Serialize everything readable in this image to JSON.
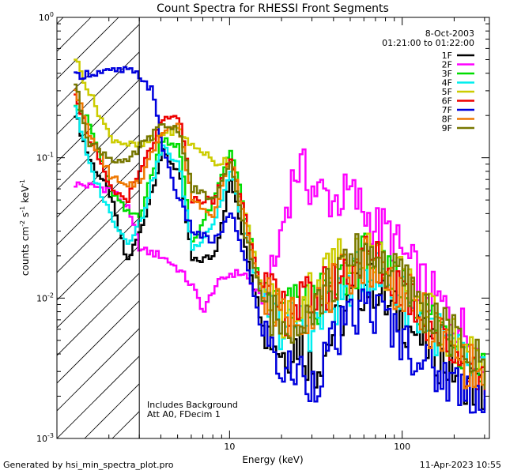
{
  "chart_data": {
    "type": "line",
    "title": "Count Spectra for RHESSI Front Segments",
    "xlabel": "Energy (keV)",
    "ylabel_parts": [
      "counts cm",
      "-2",
      " s",
      "-1",
      " keV",
      "-1"
    ],
    "xscale": "log",
    "yscale": "log",
    "xlim": [
      1.0,
      320.0
    ],
    "ylim": [
      0.001,
      1.0
    ],
    "x_ticks": [
      {
        "value": 10,
        "label": "10"
      },
      {
        "value": 100,
        "label": "100"
      }
    ],
    "y_ticks": [
      {
        "value": 1.0,
        "base": "10",
        "exp": "0"
      },
      {
        "value": 0.1,
        "base": "10",
        "exp": "-1"
      },
      {
        "value": 0.01,
        "base": "10",
        "exp": "-2"
      },
      {
        "value": 0.001,
        "base": "10",
        "exp": "-3"
      }
    ],
    "threshold_line_kev": 3.0,
    "hatched_region_kev": [
      1.0,
      3.0
    ],
    "date": "8-Oct-2003",
    "time_range": "01:21:00 to 01:22:00",
    "annotation_lines": [
      "Includes Background",
      "Att A0, FDecim 1"
    ],
    "series": [
      {
        "name": "1F",
        "color": "#000000",
        "values": [
          [
            1.25,
            0.21
          ],
          [
            1.5,
            0.1
          ],
          [
            2,
            0.055
          ],
          [
            2.5,
            0.018
          ],
          [
            3,
            0.03
          ],
          [
            4,
            0.11
          ],
          [
            5,
            0.08
          ],
          [
            6,
            0.018
          ],
          [
            8,
            0.02
          ],
          [
            10,
            0.07
          ],
          [
            12,
            0.025
          ],
          [
            15,
            0.007
          ],
          [
            20,
            0.004
          ],
          [
            25,
            0.005
          ],
          [
            30,
            0.003
          ],
          [
            40,
            0.006
          ],
          [
            50,
            0.0095
          ],
          [
            60,
            0.0125
          ],
          [
            70,
            0.012
          ],
          [
            80,
            0.0085
          ],
          [
            100,
            0.007
          ],
          [
            150,
            0.004
          ],
          [
            200,
            0.003
          ],
          [
            300,
            0.002
          ]
        ]
      },
      {
        "name": "2F",
        "color": "#ff00ff",
        "values": [
          [
            1.25,
            0.065
          ],
          [
            2,
            0.06
          ],
          [
            2.5,
            0.045
          ],
          [
            3,
            0.022
          ],
          [
            4,
            0.02
          ],
          [
            5,
            0.016
          ],
          [
            6,
            0.012
          ],
          [
            7,
            0.008
          ],
          [
            8,
            0.012
          ],
          [
            10,
            0.015
          ],
          [
            12,
            0.015
          ],
          [
            14,
            0.011
          ],
          [
            16,
            0.009
          ],
          [
            18,
            0.017
          ],
          [
            20,
            0.035
          ],
          [
            22,
            0.06
          ],
          [
            24,
            0.085
          ],
          [
            26,
            0.08
          ],
          [
            30,
            0.06
          ],
          [
            40,
            0.05
          ],
          [
            50,
            0.055
          ],
          [
            60,
            0.04
          ],
          [
            70,
            0.032
          ],
          [
            80,
            0.03
          ],
          [
            100,
            0.02
          ],
          [
            150,
            0.01
          ],
          [
            200,
            0.007
          ],
          [
            250,
            0.005
          ],
          [
            300,
            0.003
          ]
        ]
      },
      {
        "name": "3F",
        "color": "#00dd00",
        "values": [
          [
            1.25,
            0.25
          ],
          [
            1.5,
            0.18
          ],
          [
            2,
            0.06
          ],
          [
            2.5,
            0.04
          ],
          [
            3,
            0.04
          ],
          [
            4,
            0.14
          ],
          [
            5,
            0.12
          ],
          [
            6,
            0.025
          ],
          [
            8,
            0.05
          ],
          [
            10,
            0.12
          ],
          [
            12,
            0.04
          ],
          [
            15,
            0.012
          ],
          [
            20,
            0.008
          ],
          [
            25,
            0.009
          ],
          [
            30,
            0.009
          ],
          [
            40,
            0.012
          ],
          [
            50,
            0.016
          ],
          [
            60,
            0.02
          ],
          [
            70,
            0.018
          ],
          [
            80,
            0.014
          ],
          [
            100,
            0.012
          ],
          [
            150,
            0.007
          ],
          [
            200,
            0.005
          ],
          [
            300,
            0.003
          ]
        ]
      },
      {
        "name": "4F",
        "color": "#00eeee",
        "values": [
          [
            1.25,
            0.24
          ],
          [
            1.5,
            0.09
          ],
          [
            2,
            0.04
          ],
          [
            2.5,
            0.025
          ],
          [
            3,
            0.035
          ],
          [
            4,
            0.12
          ],
          [
            5,
            0.09
          ],
          [
            6,
            0.022
          ],
          [
            8,
            0.035
          ],
          [
            10,
            0.08
          ],
          [
            12,
            0.03
          ],
          [
            15,
            0.01
          ],
          [
            20,
            0.006
          ],
          [
            25,
            0.007
          ],
          [
            30,
            0.006
          ],
          [
            40,
            0.009
          ],
          [
            50,
            0.013
          ],
          [
            60,
            0.016
          ],
          [
            70,
            0.015
          ],
          [
            80,
            0.012
          ],
          [
            100,
            0.01
          ],
          [
            150,
            0.006
          ],
          [
            200,
            0.004
          ],
          [
            300,
            0.0025
          ]
        ]
      },
      {
        "name": "5F",
        "color": "#cccc00",
        "values": [
          [
            1.25,
            0.52
          ],
          [
            1.5,
            0.3
          ],
          [
            2,
            0.14
          ],
          [
            2.5,
            0.125
          ],
          [
            3,
            0.12
          ],
          [
            4,
            0.15
          ],
          [
            5,
            0.16
          ],
          [
            6,
            0.12
          ],
          [
            7,
            0.11
          ],
          [
            8,
            0.09
          ],
          [
            10,
            0.1
          ],
          [
            12,
            0.04
          ],
          [
            15,
            0.012
          ],
          [
            20,
            0.007
          ],
          [
            25,
            0.009
          ],
          [
            30,
            0.012
          ],
          [
            40,
            0.018
          ],
          [
            50,
            0.022
          ],
          [
            60,
            0.023
          ],
          [
            70,
            0.02
          ],
          [
            80,
            0.016
          ],
          [
            100,
            0.013
          ],
          [
            150,
            0.007
          ],
          [
            200,
            0.005
          ],
          [
            300,
            0.003
          ]
        ]
      },
      {
        "name": "6F",
        "color": "#ee0000",
        "values": [
          [
            1.25,
            0.3
          ],
          [
            1.5,
            0.14
          ],
          [
            2,
            0.06
          ],
          [
            2.5,
            0.05
          ],
          [
            3,
            0.08
          ],
          [
            4,
            0.18
          ],
          [
            5,
            0.2
          ],
          [
            6,
            0.05
          ],
          [
            8,
            0.05
          ],
          [
            10,
            0.1
          ],
          [
            12,
            0.04
          ],
          [
            15,
            0.012
          ],
          [
            20,
            0.008
          ],
          [
            25,
            0.009
          ],
          [
            30,
            0.01
          ],
          [
            40,
            0.013
          ],
          [
            50,
            0.017
          ],
          [
            60,
            0.02
          ],
          [
            70,
            0.018
          ],
          [
            80,
            0.014
          ],
          [
            100,
            0.012
          ],
          [
            150,
            0.006
          ],
          [
            200,
            0.004
          ],
          [
            300,
            0.0025
          ]
        ]
      },
      {
        "name": "7F",
        "color": "#0000dd",
        "values": [
          [
            1.25,
            0.38
          ],
          [
            1.5,
            0.4
          ],
          [
            2,
            0.41
          ],
          [
            2.5,
            0.42
          ],
          [
            3,
            0.38
          ],
          [
            3.5,
            0.3
          ],
          [
            4,
            0.12
          ],
          [
            5,
            0.05
          ],
          [
            6,
            0.03
          ],
          [
            8,
            0.025
          ],
          [
            10,
            0.04
          ],
          [
            12,
            0.02
          ],
          [
            15,
            0.006
          ],
          [
            20,
            0.003
          ],
          [
            25,
            0.003
          ],
          [
            30,
            0.0025
          ],
          [
            40,
            0.005
          ],
          [
            50,
            0.007
          ],
          [
            60,
            0.009
          ],
          [
            70,
            0.008
          ],
          [
            80,
            0.007
          ],
          [
            100,
            0.005
          ],
          [
            150,
            0.003
          ],
          [
            200,
            0.0025
          ],
          [
            300,
            0.002
          ]
        ]
      },
      {
        "name": "8F",
        "color": "#ee7700",
        "values": [
          [
            1.25,
            0.32
          ],
          [
            1.5,
            0.15
          ],
          [
            2,
            0.075
          ],
          [
            2.5,
            0.06
          ],
          [
            3,
            0.07
          ],
          [
            4,
            0.16
          ],
          [
            5,
            0.17
          ],
          [
            6,
            0.05
          ],
          [
            8,
            0.04
          ],
          [
            10,
            0.1
          ],
          [
            12,
            0.035
          ],
          [
            15,
            0.011
          ],
          [
            20,
            0.007
          ],
          [
            25,
            0.008
          ],
          [
            30,
            0.009
          ],
          [
            40,
            0.012
          ],
          [
            50,
            0.016
          ],
          [
            60,
            0.019
          ],
          [
            70,
            0.017
          ],
          [
            80,
            0.014
          ],
          [
            100,
            0.011
          ],
          [
            150,
            0.006
          ],
          [
            200,
            0.004
          ],
          [
            300,
            0.0025
          ]
        ]
      },
      {
        "name": "9F",
        "color": "#777700",
        "values": [
          [
            1.25,
            0.34
          ],
          [
            1.5,
            0.13
          ],
          [
            2,
            0.1
          ],
          [
            2.5,
            0.09
          ],
          [
            3,
            0.12
          ],
          [
            4,
            0.17
          ],
          [
            5,
            0.16
          ],
          [
            6,
            0.06
          ],
          [
            8,
            0.05
          ],
          [
            10,
            0.09
          ],
          [
            12,
            0.03
          ],
          [
            15,
            0.01
          ],
          [
            20,
            0.006
          ],
          [
            25,
            0.008
          ],
          [
            30,
            0.009
          ],
          [
            40,
            0.013
          ],
          [
            50,
            0.018
          ],
          [
            60,
            0.022
          ],
          [
            70,
            0.02
          ],
          [
            80,
            0.016
          ],
          [
            100,
            0.013
          ],
          [
            150,
            0.007
          ],
          [
            200,
            0.005
          ],
          [
            300,
            0.003
          ]
        ]
      }
    ]
  },
  "footer": {
    "generated_by": "Generated by hsi_min_spectra_plot.pro",
    "timestamp": "11-Apr-2023 10:55"
  }
}
